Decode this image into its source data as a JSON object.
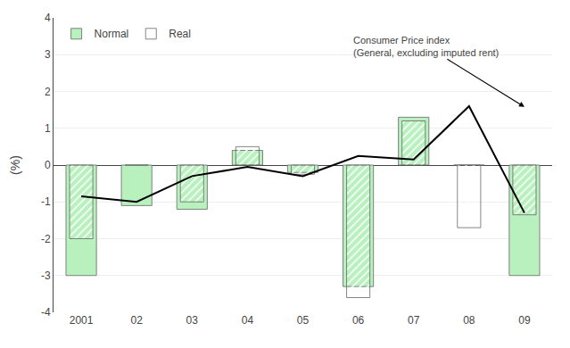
{
  "chart_data": {
    "type": "bar",
    "categories": [
      "2001",
      "02",
      "03",
      "04",
      "05",
      "06",
      "07",
      "08",
      "09"
    ],
    "series": [
      {
        "name": "Normal",
        "type": "bar",
        "color": "#b8f0be",
        "values": [
          -3.0,
          -1.1,
          -1.2,
          0.4,
          -0.2,
          -3.3,
          1.3,
          0.0,
          -3.0
        ]
      },
      {
        "name": "Real",
        "type": "bar",
        "color": "#3355cc",
        "values": [
          -2.0,
          0.0,
          -1.0,
          0.5,
          -0.25,
          -3.6,
          1.2,
          -1.7,
          -1.35
        ]
      },
      {
        "type": "line",
        "color": "#000000",
        "values": [
          -0.85,
          -1.0,
          -0.3,
          -0.05,
          -0.3,
          0.25,
          0.15,
          1.6,
          -1.3
        ]
      }
    ],
    "ylabel": "(%)",
    "ylim": [
      -4,
      4
    ],
    "yticks": [
      -4,
      -3,
      -2,
      -1,
      0,
      1,
      2,
      3,
      4
    ],
    "grid": true,
    "legend": "upper left",
    "annotations": [
      {
        "text": "Consumer Price index\n(General, excluding imputed rent)",
        "x": "08",
        "y": 1.58
      }
    ]
  }
}
